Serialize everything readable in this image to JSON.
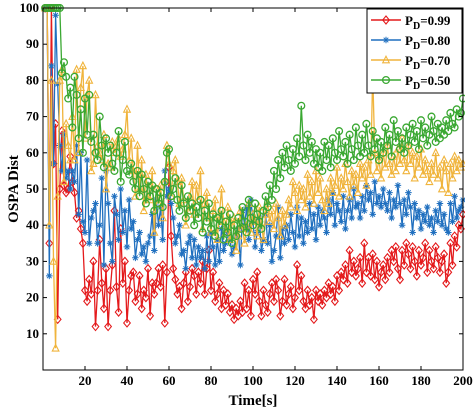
{
  "chart_data": {
    "type": "line",
    "title": "",
    "xlabel": "Time[s]",
    "ylabel": "OSPA Dist",
    "xlim": [
      0,
      200
    ],
    "ylim": [
      0,
      100
    ],
    "xticks": [
      "20",
      "40",
      "60",
      "80",
      "100",
      "120",
      "140",
      "160",
      "180",
      "200"
    ],
    "yticks": [
      "10",
      "20",
      "30",
      "40",
      "50",
      "60",
      "70",
      "80",
      "90",
      "100"
    ],
    "grid": false,
    "legend_position": "top-right",
    "x": [
      1,
      2,
      3,
      4,
      5,
      6,
      7,
      8,
      9,
      10,
      11,
      12,
      13,
      14,
      15,
      16,
      17,
      18,
      19,
      20,
      21,
      22,
      23,
      24,
      25,
      26,
      27,
      28,
      29,
      30,
      31,
      32,
      33,
      34,
      35,
      36,
      37,
      38,
      39,
      40,
      41,
      42,
      43,
      44,
      45,
      46,
      47,
      48,
      49,
      50,
      51,
      52,
      53,
      54,
      55,
      56,
      57,
      58,
      59,
      60,
      61,
      62,
      63,
      64,
      65,
      66,
      67,
      68,
      69,
      70,
      71,
      72,
      73,
      74,
      75,
      76,
      77,
      78,
      79,
      80,
      81,
      82,
      83,
      84,
      85,
      86,
      87,
      88,
      89,
      90,
      91,
      92,
      93,
      94,
      95,
      96,
      97,
      98,
      99,
      100,
      101,
      102,
      103,
      104,
      105,
      106,
      107,
      108,
      109,
      110,
      111,
      112,
      113,
      114,
      115,
      116,
      117,
      118,
      119,
      120,
      121,
      122,
      123,
      124,
      125,
      126,
      127,
      128,
      129,
      130,
      131,
      132,
      133,
      134,
      135,
      136,
      137,
      138,
      139,
      140,
      141,
      142,
      143,
      144,
      145,
      146,
      147,
      148,
      149,
      150,
      151,
      152,
      153,
      154,
      155,
      156,
      157,
      158,
      159,
      160,
      161,
      162,
      163,
      164,
      165,
      166,
      167,
      168,
      169,
      170,
      171,
      172,
      173,
      174,
      175,
      176,
      177,
      178,
      179,
      180,
      181,
      182,
      183,
      184,
      185,
      186,
      187,
      188,
      189,
      190,
      191,
      192,
      193,
      194,
      195,
      196,
      197,
      198,
      199,
      200
    ],
    "series": [
      {
        "name_main": "P",
        "name_sub": "D",
        "name_tail": "=0.99",
        "color": "#e41a1c",
        "marker": "diamond",
        "values": [
          100,
          100,
          35,
          100,
          57,
          68,
          14,
          50,
          66,
          51,
          49,
          50,
          59,
          52,
          49,
          42,
          44,
          39,
          35,
          22,
          19,
          25,
          21,
          30,
          12,
          22,
          36,
          24,
          17,
          28,
          12,
          22,
          29,
          44,
          23,
          16,
          39,
          24,
          30,
          13,
          22,
          26,
          27,
          19,
          21,
          26,
          17,
          22,
          20,
          28,
          15,
          24,
          21,
          24,
          28,
          23,
          29,
          13,
          27,
          56,
          37,
          28,
          25,
          21,
          23,
          17,
          24,
          27,
          19,
          23,
          28,
          26,
          21,
          27,
          24,
          30,
          21,
          28,
          33,
          22,
          27,
          19,
          21,
          24,
          17,
          22,
          18,
          21,
          16,
          18,
          14,
          17,
          15,
          19,
          16,
          24,
          17,
          22,
          15,
          25,
          21,
          27,
          19,
          15,
          22,
          18,
          16,
          21,
          24,
          19,
          25,
          22,
          15,
          19,
          25,
          18,
          21,
          23,
          17,
          20,
          29,
          22,
          26,
          19,
          17,
          22,
          18,
          20,
          14,
          22,
          19,
          21,
          18,
          22,
          20,
          24,
          21,
          23,
          19,
          26,
          22,
          27,
          25,
          29,
          24,
          33,
          27,
          30,
          26,
          28,
          31,
          24,
          35,
          27,
          31,
          26,
          32,
          25,
          30,
          23,
          27,
          29,
          25,
          31,
          27,
          33,
          30,
          34,
          28,
          25,
          33,
          29,
          35,
          32,
          28,
          34,
          30,
          26,
          33,
          29,
          31,
          35,
          27,
          33,
          30,
          28,
          34,
          31,
          27,
          30,
          32,
          24,
          27,
          35,
          29,
          37,
          34,
          40,
          39,
          43
        ]
      },
      {
        "name_main": "P",
        "name_sub": "D",
        "name_tail": "=0.80",
        "color": "#1f6fbf",
        "marker": "asterisk",
        "values": [
          100,
          100,
          26,
          84,
          57,
          98,
          79,
          62,
          55,
          65,
          53,
          55,
          50,
          55,
          52,
          62,
          43,
          60,
          41,
          38,
          58,
          35,
          42,
          44,
          46,
          35,
          40,
          53,
          29,
          55,
          46,
          35,
          30,
          48,
          43,
          36,
          50,
          38,
          44,
          34,
          47,
          39,
          41,
          31,
          36,
          38,
          32,
          34,
          30,
          35,
          37,
          43,
          33,
          47,
          40,
          45,
          36,
          55,
          48,
          50,
          46,
          42,
          35,
          37,
          40,
          32,
          33,
          28,
          35,
          37,
          31,
          36,
          29,
          34,
          31,
          33,
          28,
          37,
          30,
          38,
          34,
          29,
          36,
          30,
          39,
          33,
          35,
          38,
          36,
          32,
          34,
          37,
          39,
          29,
          44,
          40,
          45,
          36,
          47,
          41,
          34,
          38,
          42,
          33,
          36,
          43,
          35,
          40,
          30,
          33,
          37,
          45,
          31,
          39,
          35,
          40,
          36,
          43,
          38,
          34,
          45,
          37,
          42,
          35,
          41,
          38,
          46,
          39,
          43,
          36,
          45,
          40,
          44,
          42,
          38,
          47,
          43,
          49,
          40,
          46,
          44,
          41,
          48,
          39,
          44,
          47,
          42,
          50,
          45,
          46,
          42,
          48,
          44,
          51,
          47,
          49,
          43,
          52,
          46,
          48,
          45,
          50,
          46,
          44,
          49,
          42,
          47,
          45,
          51,
          46,
          40,
          47,
          43,
          49,
          45,
          38,
          46,
          42,
          44,
          39,
          43,
          41,
          45,
          40,
          42,
          38,
          44,
          41,
          46,
          40,
          43,
          39,
          38,
          46,
          41,
          48,
          42,
          44,
          45,
          47
        ]
      },
      {
        "name_main": "P",
        "name_sub": "D",
        "name_tail": "=0.70",
        "color": "#f0b43c",
        "marker": "triangle",
        "values": [
          100,
          100,
          40,
          80,
          30,
          6,
          48,
          80,
          83,
          52,
          68,
          62,
          58,
          70,
          58,
          83,
          60,
          78,
          84,
          64,
          76,
          80,
          55,
          57,
          76,
          62,
          60,
          58,
          65,
          50,
          57,
          56,
          63,
          60,
          62,
          64,
          59,
          61,
          65,
          72,
          58,
          64,
          55,
          48,
          62,
          50,
          58,
          44,
          54,
          48,
          47,
          55,
          38,
          50,
          46,
          51,
          42,
          52,
          62,
          57,
          48,
          55,
          58,
          52,
          46,
          53,
          47,
          40,
          44,
          48,
          52,
          43,
          51,
          47,
          55,
          39,
          46,
          49,
          42,
          38,
          44,
          47,
          36,
          43,
          50,
          41,
          38,
          45,
          36,
          40,
          42,
          33,
          37,
          44,
          39,
          35,
          40,
          46,
          38,
          43,
          41,
          37,
          45,
          40,
          36,
          43,
          46,
          41,
          44,
          39,
          46,
          42,
          37,
          44,
          40,
          43,
          47,
          45,
          52,
          49,
          44,
          51,
          47,
          50,
          45,
          54,
          48,
          52,
          46,
          55,
          49,
          53,
          47,
          44,
          50,
          46,
          53,
          49,
          51,
          56,
          48,
          53,
          50,
          57,
          52,
          48,
          55,
          51,
          54,
          49,
          57,
          53,
          56,
          51,
          58,
          54,
          82,
          60,
          55,
          58,
          53,
          60,
          56,
          62,
          57,
          54,
          59,
          55,
          61,
          57,
          64,
          58,
          55,
          62,
          57,
          60,
          53,
          59,
          56,
          61,
          54,
          58,
          55,
          52,
          57,
          54,
          60,
          53,
          56,
          50,
          58,
          55,
          49,
          57,
          53,
          59,
          55,
          58,
          56,
          57
        ]
      },
      {
        "name_main": "P",
        "name_sub": "D",
        "name_tail": "=0.50",
        "color": "#3aa832",
        "marker": "circle",
        "values": [
          100,
          100,
          100,
          100,
          100,
          100,
          100,
          100,
          82,
          85,
          81,
          75,
          78,
          67,
          81,
          76,
          64,
          72,
          60,
          75,
          65,
          76,
          63,
          65,
          60,
          58,
          70,
          62,
          56,
          64,
          60,
          62,
          57,
          55,
          60,
          66,
          52,
          58,
          63,
          55,
          54,
          57,
          52,
          50,
          55,
          48,
          54,
          50,
          46,
          52,
          48,
          51,
          44,
          50,
          46,
          49,
          45,
          52,
          60,
          61,
          48,
          50,
          53,
          47,
          44,
          51,
          46,
          42,
          48,
          44,
          46,
          40,
          45,
          42,
          47,
          38,
          44,
          41,
          46,
          39,
          43,
          37,
          42,
          40,
          44,
          36,
          41,
          38,
          43,
          35,
          40,
          37,
          42,
          39,
          45,
          41,
          38,
          47,
          42,
          40,
          46,
          43,
          41,
          39,
          44,
          48,
          45,
          51,
          47,
          55,
          50,
          58,
          53,
          60,
          56,
          62,
          58,
          55,
          61,
          57,
          64,
          59,
          73,
          62,
          58,
          65,
          60,
          63,
          57,
          61,
          56,
          60,
          55,
          63,
          58,
          62,
          56,
          64,
          60,
          58,
          66,
          61,
          59,
          63,
          57,
          65,
          61,
          58,
          67,
          62,
          59,
          65,
          60,
          68,
          62,
          59,
          66,
          61,
          64,
          58,
          63,
          60,
          67,
          62,
          65,
          59,
          69,
          63,
          66,
          61,
          64,
          60,
          67,
          62,
          65,
          68,
          63,
          66,
          61,
          69,
          64,
          67,
          62,
          65,
          70,
          66,
          63,
          68,
          64,
          67,
          65,
          69,
          66,
          71,
          68,
          67,
          72,
          70,
          71,
          75
        ]
      }
    ]
  }
}
